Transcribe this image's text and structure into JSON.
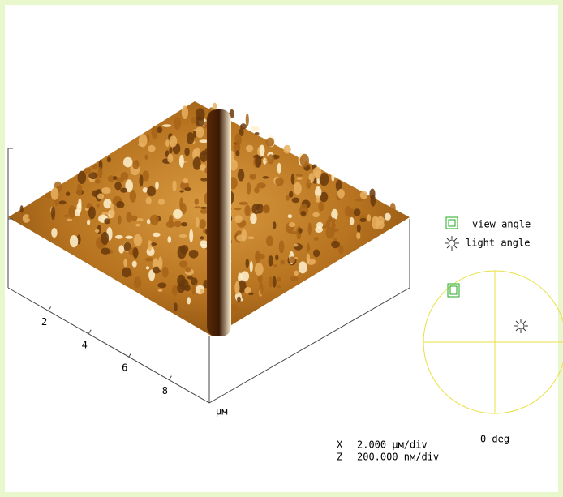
{
  "axes": {
    "ticks": [
      "2",
      "4",
      "6",
      "8"
    ],
    "unit": "µм"
  },
  "legend": {
    "view": "view angle",
    "light": "light angle"
  },
  "dial": {
    "angle": "0 deg"
  },
  "scale": {
    "x": {
      "axis": "X",
      "value": "2.000 µм/div"
    },
    "z": {
      "axis": "Z",
      "value": "200.000 nм/div"
    }
  }
}
